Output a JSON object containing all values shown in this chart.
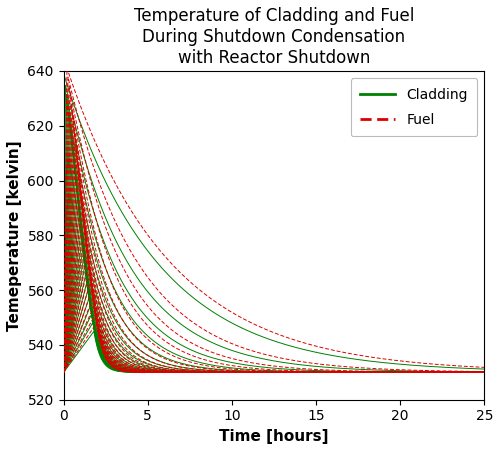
{
  "title": "Temperature of Cladding and Fuel\nDuring Shutdown Condensation\nwith Reactor Shutdown",
  "xlabel": "Time [hours]",
  "ylabel": "Temeperature [kelvin]",
  "xlim": [
    0,
    25
  ],
  "ylim": [
    520,
    640
  ],
  "yticks": [
    520,
    540,
    560,
    580,
    600,
    620,
    640
  ],
  "xticks": [
    0,
    5,
    10,
    15,
    20,
    25
  ],
  "background_color": "#ffffff",
  "cladding_color": "#008000",
  "fuel_color": "#dd0000",
  "T_base": 530.0,
  "n_curves": 30,
  "title_fontsize": 12,
  "label_fontsize": 11,
  "tick_fontsize": 10
}
